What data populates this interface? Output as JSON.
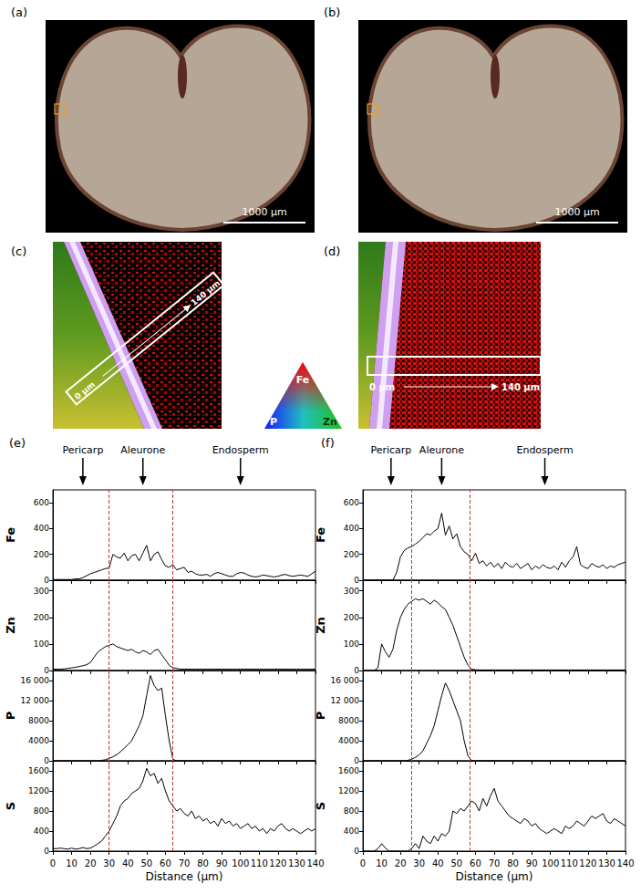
{
  "figure": {
    "image_panels": [
      {
        "label": "(a)",
        "scale_bar": "1000 μm"
      },
      {
        "label": "(b)",
        "scale_bar": "1000 μm"
      },
      {
        "label": "(c)",
        "line_start": "0 μm",
        "line_end": "140 μm"
      },
      {
        "label": "(d)",
        "line_start": "0 μm",
        "line_end": "140 μm"
      }
    ],
    "color_triangle": {
      "top": "Fe",
      "left": "P",
      "right": "Zn"
    }
  },
  "chart_data": [
    {
      "type": "line",
      "title": "(e)",
      "x_label": "Distance (μm)",
      "color": "#000000",
      "grid": false,
      "xlim": [
        0,
        140
      ],
      "xticks": [
        0,
        10,
        20,
        30,
        40,
        50,
        60,
        70,
        80,
        90,
        100,
        110,
        120,
        130,
        140
      ],
      "x": [
        0,
        2,
        4,
        6,
        8,
        10,
        12,
        14,
        16,
        18,
        20,
        22,
        24,
        26,
        28,
        30,
        32,
        34,
        36,
        38,
        40,
        42,
        44,
        46,
        48,
        50,
        52,
        54,
        56,
        58,
        60,
        62,
        64,
        66,
        68,
        70,
        72,
        74,
        76,
        78,
        80,
        82,
        84,
        86,
        88,
        90,
        92,
        94,
        96,
        98,
        100,
        102,
        104,
        106,
        108,
        110,
        112,
        114,
        116,
        118,
        120,
        122,
        124,
        126,
        128,
        130,
        132,
        134,
        136,
        138,
        140
      ],
      "boundaries": [
        30,
        64
      ],
      "annotations": [
        {
          "text": "Pericarp",
          "x": 16
        },
        {
          "text": "Aleurone",
          "x": 48
        },
        {
          "text": "Endosperm",
          "x": 100
        }
      ],
      "panels": [
        {
          "y_label": "Fe",
          "ylim": [
            0,
            700
          ],
          "yticks": [
            0,
            200,
            400,
            600
          ],
          "values": [
            5,
            5,
            5,
            5,
            5,
            5,
            10,
            10,
            20,
            35,
            50,
            60,
            70,
            80,
            90,
            95,
            200,
            180,
            170,
            210,
            150,
            190,
            200,
            150,
            210,
            270,
            150,
            200,
            220,
            160,
            110,
            100,
            120,
            80,
            90,
            100,
            60,
            70,
            50,
            40,
            40,
            45,
            30,
            50,
            60,
            50,
            40,
            30,
            30,
            50,
            60,
            55,
            40,
            30,
            25,
            30,
            40,
            35,
            30,
            25,
            30,
            40,
            45,
            35,
            30,
            35,
            40,
            35,
            30,
            50,
            70
          ]
        },
        {
          "y_label": "Zn",
          "ylim": [
            0,
            340
          ],
          "yticks": [
            0,
            100,
            200,
            300
          ],
          "values": [
            5,
            5,
            5,
            6,
            8,
            10,
            12,
            15,
            18,
            22,
            30,
            50,
            70,
            80,
            90,
            95,
            100,
            90,
            85,
            80,
            75,
            80,
            70,
            65,
            75,
            70,
            60,
            75,
            80,
            60,
            40,
            20,
            10,
            8,
            5,
            5,
            5,
            5,
            5,
            5,
            5,
            5,
            5,
            5,
            5,
            5,
            5,
            5,
            5,
            5,
            5,
            5,
            5,
            5,
            5,
            5,
            5,
            5,
            5,
            5,
            5,
            5,
            5,
            5,
            5,
            5,
            5,
            5,
            5,
            5,
            5
          ]
        },
        {
          "y_label": "P",
          "ylim": [
            0,
            18000
          ],
          "yticks": [
            0,
            4000,
            8000,
            {
              "value": 12000,
              "label": "12 000"
            },
            {
              "value": 16000,
              "label": "16 000"
            }
          ],
          "values": [
            0,
            0,
            0,
            0,
            0,
            0,
            0,
            0,
            0,
            0,
            0,
            0,
            0,
            100,
            200,
            500,
            800,
            1200,
            1800,
            2500,
            3200,
            4000,
            5500,
            7000,
            9000,
            13000,
            17000,
            15000,
            14000,
            14500,
            9000,
            4000,
            300,
            0,
            0,
            0,
            0,
            0,
            0,
            0,
            0,
            0,
            0,
            0,
            0,
            0,
            0,
            0,
            0,
            0,
            0,
            0,
            0,
            0,
            0,
            0,
            0,
            0,
            0,
            0,
            0,
            0,
            0,
            0,
            0,
            0,
            0,
            0,
            0,
            0,
            0
          ]
        },
        {
          "y_label": "S",
          "ylim": [
            0,
            1800
          ],
          "yticks": [
            0,
            400,
            800,
            1200,
            1600
          ],
          "values": [
            50,
            50,
            60,
            50,
            40,
            60,
            40,
            50,
            70,
            50,
            60,
            100,
            150,
            200,
            300,
            400,
            550,
            700,
            900,
            1000,
            1050,
            1150,
            1200,
            1250,
            1400,
            1650,
            1500,
            1550,
            1350,
            1450,
            1200,
            1000,
            900,
            800,
            850,
            750,
            700,
            800,
            650,
            700,
            600,
            650,
            550,
            600,
            500,
            650,
            550,
            600,
            500,
            550,
            450,
            500,
            550,
            450,
            500,
            400,
            450,
            350,
            450,
            400,
            500,
            550,
            450,
            400,
            450,
            400,
            350,
            400,
            450,
            400,
            450
          ]
        }
      ]
    },
    {
      "type": "line",
      "title": "(f)",
      "x_label": "Distance (μm)",
      "color": "#000000",
      "grid": false,
      "xlim": [
        0,
        140
      ],
      "xticks": [
        0,
        10,
        20,
        30,
        40,
        50,
        60,
        70,
        80,
        90,
        100,
        110,
        120,
        130,
        140
      ],
      "x": [
        0,
        2,
        4,
        6,
        8,
        10,
        12,
        14,
        16,
        18,
        20,
        22,
        24,
        26,
        28,
        30,
        32,
        34,
        36,
        38,
        40,
        42,
        44,
        46,
        48,
        50,
        52,
        54,
        56,
        58,
        60,
        62,
        64,
        66,
        68,
        70,
        72,
        74,
        76,
        78,
        80,
        82,
        84,
        86,
        88,
        90,
        92,
        94,
        96,
        98,
        100,
        102,
        104,
        106,
        108,
        110,
        112,
        114,
        116,
        118,
        120,
        122,
        124,
        126,
        128,
        130,
        132,
        134,
        136,
        138,
        140
      ],
      "boundaries": [
        26,
        57
      ],
      "annotations": [
        {
          "text": "Pericarp",
          "x": 15
        },
        {
          "text": "Aleurone",
          "x": 42
        },
        {
          "text": "Endosperm",
          "x": 97
        }
      ],
      "panels": [
        {
          "y_label": "Fe",
          "ylim": [
            0,
            700
          ],
          "yticks": [
            0,
            200,
            400,
            600
          ],
          "values": [
            0,
            0,
            0,
            0,
            0,
            0,
            0,
            0,
            0,
            60,
            180,
            230,
            250,
            260,
            280,
            300,
            330,
            360,
            350,
            380,
            400,
            520,
            350,
            420,
            320,
            360,
            260,
            220,
            200,
            150,
            210,
            130,
            150,
            110,
            140,
            100,
            130,
            90,
            140,
            110,
            100,
            130,
            90,
            110,
            130,
            80,
            110,
            90,
            120,
            100,
            90,
            110,
            80,
            140,
            100,
            150,
            180,
            260,
            120,
            100,
            90,
            130,
            110,
            100,
            120,
            90,
            110,
            100,
            120,
            130,
            140
          ]
        },
        {
          "y_label": "Zn",
          "ylim": [
            0,
            340
          ],
          "yticks": [
            0,
            100,
            200,
            300
          ],
          "values": [
            0,
            0,
            0,
            0,
            10,
            100,
            70,
            50,
            80,
            150,
            200,
            230,
            250,
            260,
            270,
            265,
            270,
            260,
            250,
            265,
            255,
            240,
            230,
            200,
            170,
            130,
            90,
            50,
            20,
            5,
            3,
            2,
            2,
            2,
            2,
            2,
            2,
            2,
            2,
            2,
            2,
            2,
            2,
            2,
            2,
            2,
            2,
            2,
            2,
            2,
            2,
            2,
            2,
            2,
            2,
            2,
            2,
            2,
            2,
            2,
            2,
            2,
            2,
            2,
            2,
            2,
            2,
            2,
            2,
            2,
            2
          ]
        },
        {
          "y_label": "P",
          "ylim": [
            0,
            18000
          ],
          "yticks": [
            0,
            4000,
            8000,
            {
              "value": 12000,
              "label": "12 000"
            },
            {
              "value": 16000,
              "label": "16 000"
            }
          ],
          "values": [
            0,
            0,
            0,
            0,
            0,
            0,
            0,
            0,
            0,
            0,
            0,
            0,
            100,
            300,
            700,
            1200,
            2000,
            3500,
            5000,
            7000,
            10000,
            13000,
            15500,
            14000,
            12000,
            10000,
            8000,
            4000,
            1000,
            0,
            0,
            0,
            0,
            0,
            0,
            0,
            0,
            0,
            0,
            0,
            0,
            0,
            0,
            0,
            0,
            0,
            0,
            0,
            0,
            0,
            0,
            0,
            0,
            0,
            0,
            0,
            0,
            0,
            0,
            0,
            0,
            0,
            0,
            0,
            0,
            0,
            0,
            0,
            0,
            0,
            0
          ]
        },
        {
          "y_label": "S",
          "ylim": [
            0,
            1800
          ],
          "yticks": [
            0,
            400,
            800,
            1200,
            1600
          ],
          "values": [
            0,
            0,
            0,
            0,
            50,
            150,
            60,
            0,
            0,
            0,
            0,
            0,
            0,
            50,
            150,
            50,
            300,
            200,
            150,
            300,
            200,
            350,
            300,
            400,
            800,
            750,
            850,
            800,
            900,
            1000,
            950,
            800,
            1050,
            900,
            1100,
            1250,
            1000,
            900,
            800,
            700,
            650,
            600,
            550,
            650,
            600,
            500,
            550,
            450,
            400,
            350,
            400,
            450,
            400,
            350,
            500,
            450,
            500,
            600,
            550,
            500,
            600,
            700,
            650,
            700,
            750,
            600,
            550,
            650,
            600,
            550,
            500
          ]
        }
      ]
    }
  ]
}
